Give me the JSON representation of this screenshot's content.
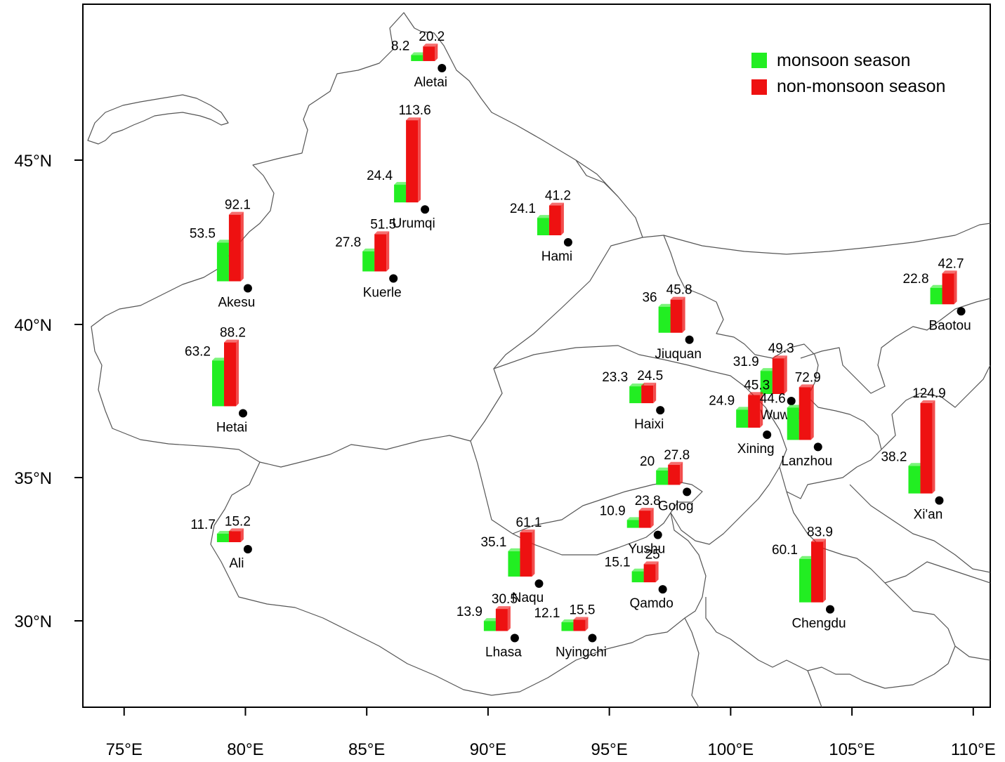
{
  "colors": {
    "monsoon": "#22ee22",
    "non_monsoon": "#ee1111",
    "border": "#555555",
    "frame": "#000000"
  },
  "legend": [
    {
      "name": "monsoon season",
      "color": "#22ee22"
    },
    {
      "name": "non-monsoon season",
      "color": "#ee1111"
    }
  ],
  "axes": {
    "lon_ticks": [
      {
        "value": 75,
        "label": "75°E"
      },
      {
        "value": 80,
        "label": "80°E"
      },
      {
        "value": 85,
        "label": "85°E"
      },
      {
        "value": 90,
        "label": "90°E"
      },
      {
        "value": 95,
        "label": "95°E"
      },
      {
        "value": 100,
        "label": "100°E"
      },
      {
        "value": 105,
        "label": "105°E"
      },
      {
        "value": 110,
        "label": "110°E"
      }
    ],
    "lat_ticks": [
      {
        "value": 30,
        "label": "30°N"
      },
      {
        "value": 35,
        "label": "35°N"
      },
      {
        "value": 40,
        "label": "40°N"
      },
      {
        "value": 45,
        "label": "45°N"
      }
    ]
  },
  "chart_data": {
    "type": "bar",
    "xlim": [
      73.3,
      110.7
    ],
    "ylim": [
      26.9,
      49.5
    ],
    "series_names": [
      "monsoon season",
      "non-monsoon season"
    ],
    "stations": [
      {
        "name": "Aletai",
        "lon": 88.1,
        "lat": 47.8,
        "monsoon": 8.2,
        "non_monsoon": 20.2,
        "monsoon_label": "8.2",
        "non_monsoon_label": "20.2"
      },
      {
        "name": "Urumqi",
        "lon": 87.4,
        "lat": 43.5,
        "monsoon": 24.4,
        "non_monsoon": 113.6,
        "monsoon_label": "24.4",
        "non_monsoon_label": "113.6"
      },
      {
        "name": "Akesu",
        "lon": 80.1,
        "lat": 41.1,
        "monsoon": 53.5,
        "non_monsoon": 92.1,
        "monsoon_label": "53.5",
        "non_monsoon_label": "92.1"
      },
      {
        "name": "Kuerle",
        "lon": 86.1,
        "lat": 41.4,
        "monsoon": 27.8,
        "non_monsoon": 51.5,
        "monsoon_label": "27.8",
        "non_monsoon_label": "51.5"
      },
      {
        "name": "Hami",
        "lon": 93.3,
        "lat": 42.5,
        "monsoon": 24.1,
        "non_monsoon": 41.2,
        "monsoon_label": "24.1",
        "non_monsoon_label": "41.2"
      },
      {
        "name": "Hetai",
        "lon": 79.9,
        "lat": 37.1,
        "monsoon": 63.2,
        "non_monsoon": 88.2,
        "monsoon_label": "63.2",
        "non_monsoon_label": "88.2"
      },
      {
        "name": "Ali",
        "lon": 80.1,
        "lat": 32.5,
        "monsoon": 11.7,
        "non_monsoon": 15.2,
        "monsoon_label": "11.7",
        "non_monsoon_label": "15.2"
      },
      {
        "name": "Jiuquan",
        "lon": 98.3,
        "lat": 39.5,
        "monsoon": 36,
        "non_monsoon": 45.8,
        "monsoon_label": "36",
        "non_monsoon_label": "45.8"
      },
      {
        "name": "Baotou",
        "lon": 109.5,
        "lat": 40.4,
        "monsoon": 22.8,
        "non_monsoon": 42.7,
        "monsoon_label": "22.8",
        "non_monsoon_label": "42.7"
      },
      {
        "name": "Haixi",
        "lon": 97.1,
        "lat": 37.2,
        "monsoon": 23.3,
        "non_monsoon": 24.5,
        "monsoon_label": "23.3",
        "non_monsoon_label": "24.5"
      },
      {
        "name": "Wuwei",
        "lon": 102.5,
        "lat": 37.5,
        "monsoon": 31.9,
        "non_monsoon": 49.3,
        "monsoon_label": "31.9",
        "non_monsoon_label": "49.3"
      },
      {
        "name": "Xining",
        "lon": 101.5,
        "lat": 36.4,
        "monsoon": 24.9,
        "non_monsoon": 45.3,
        "monsoon_label": "24.9",
        "non_monsoon_label": "45.3"
      },
      {
        "name": "Lanzhou",
        "lon": 103.6,
        "lat": 36.0,
        "monsoon": 44.6,
        "non_monsoon": 72.9,
        "monsoon_label": "44.6",
        "non_monsoon_label": "72.9"
      },
      {
        "name": "Xi'an",
        "lon": 108.6,
        "lat": 34.2,
        "monsoon": 38.2,
        "non_monsoon": 124.9,
        "monsoon_label": "38.2",
        "non_monsoon_label": "124.9"
      },
      {
        "name": "Golog",
        "lon": 98.2,
        "lat": 34.5,
        "monsoon": 20,
        "non_monsoon": 27.8,
        "monsoon_label": "20",
        "non_monsoon_label": "27.8"
      },
      {
        "name": "Yushu",
        "lon": 97.0,
        "lat": 33.0,
        "monsoon": 10.9,
        "non_monsoon": 23.8,
        "monsoon_label": "10.9",
        "non_monsoon_label": "23.8"
      },
      {
        "name": "Qamdo",
        "lon": 97.2,
        "lat": 31.1,
        "monsoon": 15.1,
        "non_monsoon": 25,
        "monsoon_label": "15.1",
        "non_monsoon_label": "25"
      },
      {
        "name": "Naqu",
        "lon": 92.1,
        "lat": 31.3,
        "monsoon": 35.1,
        "non_monsoon": 61.1,
        "monsoon_label": "35.1",
        "non_monsoon_label": "61.1"
      },
      {
        "name": "Lhasa",
        "lon": 91.1,
        "lat": 29.4,
        "monsoon": 13.9,
        "non_monsoon": 30.5,
        "monsoon_label": "13.9",
        "non_monsoon_label": "30.5"
      },
      {
        "name": "Nyingchi",
        "lon": 94.3,
        "lat": 29.4,
        "monsoon": 12.1,
        "non_monsoon": 15.5,
        "monsoon_label": "12.1",
        "non_monsoon_label": "15.5"
      },
      {
        "name": "Chengdu",
        "lon": 104.1,
        "lat": 30.4,
        "monsoon": 60.1,
        "non_monsoon": 83.9,
        "monsoon_label": "60.1",
        "non_monsoon_label": "83.9"
      }
    ]
  }
}
